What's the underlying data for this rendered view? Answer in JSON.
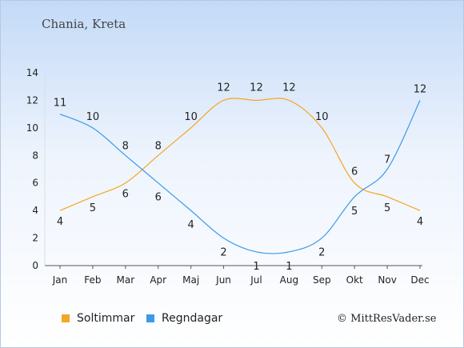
{
  "title": "Chania, Kreta",
  "credit": "© MittResVader.se",
  "chart_data": {
    "type": "line",
    "categories": [
      "Jan",
      "Feb",
      "Mar",
      "Apr",
      "Maj",
      "Jun",
      "Jul",
      "Aug",
      "Sep",
      "Okt",
      "Nov",
      "Dec"
    ],
    "ylim": [
      0,
      14
    ],
    "yticks": [
      0,
      2,
      4,
      6,
      8,
      10,
      12,
      14
    ],
    "series": [
      {
        "name": "Soltimmar",
        "color": "#f5a623",
        "values": [
          4,
          5,
          6,
          8,
          10,
          12,
          12,
          12,
          10,
          6,
          5,
          4
        ]
      },
      {
        "name": "Regndagar",
        "color": "#3b9ae8",
        "values": [
          11,
          10,
          8,
          6,
          4,
          2,
          1,
          1,
          2,
          5,
          7,
          12
        ]
      }
    ],
    "legend_position": "bottom-left",
    "grid": false
  }
}
